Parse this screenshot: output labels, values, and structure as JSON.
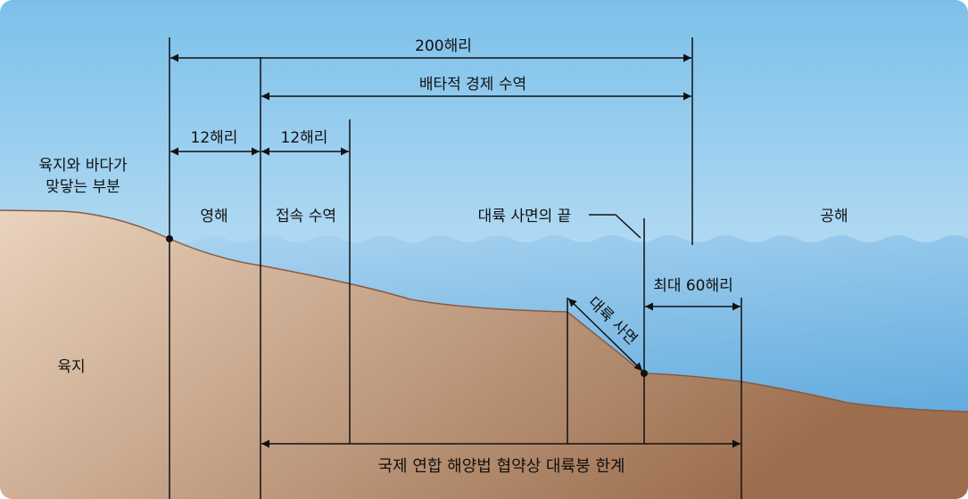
{
  "colors": {
    "sky_top": "#7cc0ea",
    "sky_bottom": "#e6f3fb",
    "sea_top": "#a9d3f0",
    "sea_bottom": "#5aa7dc",
    "land_light": "#ead3bd",
    "land_dark": "#9c6e4e",
    "land_edge": "#8a5a3e",
    "line": "#111111"
  },
  "labels": {
    "nm200": "200해리",
    "eez": "배타적 경제 수역",
    "territorial_12": "12해리",
    "contiguous_12": "12해리",
    "baseline_line1": "육지와 바다가",
    "baseline_line2": "맞닿는 부분",
    "territorial_sea": "영해",
    "contiguous_zone": "접속 수역",
    "slope_end": "대륙 사면의 끝",
    "high_seas": "공해",
    "max60": "최대 60해리",
    "slope": "대륙 사면",
    "land": "육지",
    "unclos_limit": "국제 연합 해양법 협약상 대륙붕 한계"
  }
}
